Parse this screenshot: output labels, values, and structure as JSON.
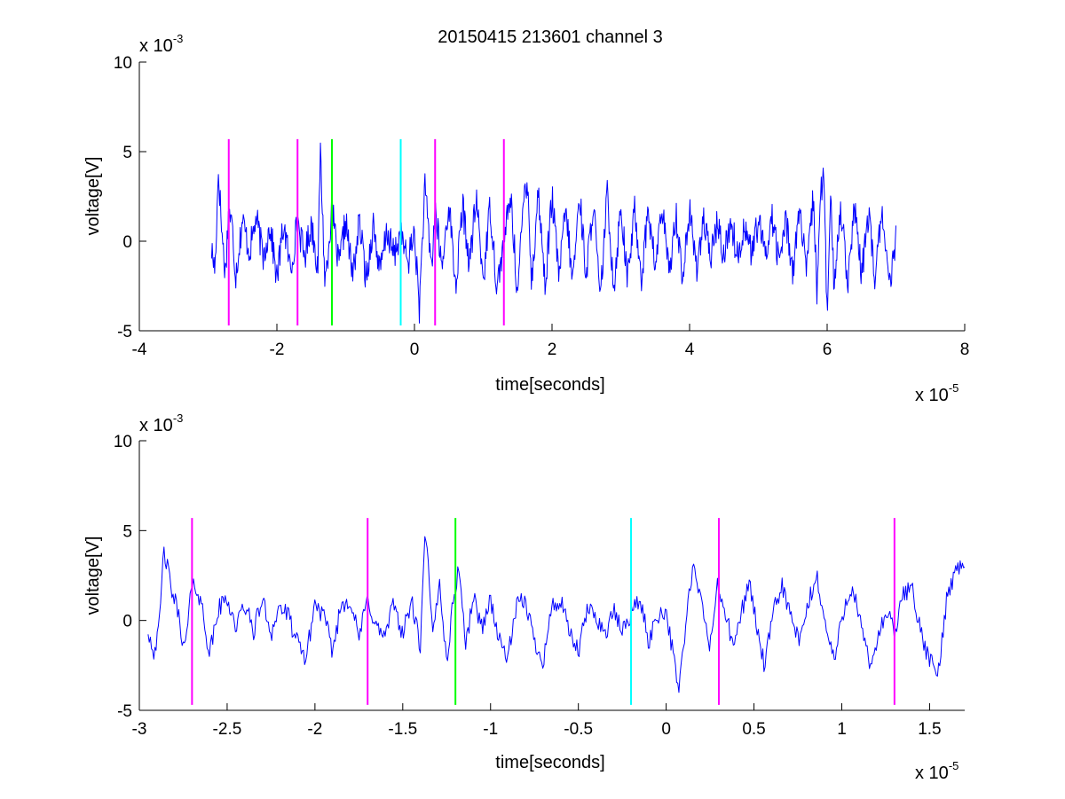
{
  "figure": {
    "title": "20150415 213601 channel 3"
  },
  "chart_data": [
    {
      "type": "line",
      "title": "20150415 213601 channel 3",
      "xlabel": "time[seconds]",
      "ylabel": "voltage[V]",
      "x_multiplier": {
        "base": "x 10",
        "exponent": "-5"
      },
      "y_multiplier": {
        "base": "x 10",
        "exponent": "-3"
      },
      "xlim": [
        -4,
        8
      ],
      "ylim": [
        -5,
        10
      ],
      "x_ticks": [
        -4,
        -2,
        0,
        2,
        4,
        6,
        8
      ],
      "x_tick_labels": [
        "-4",
        "-2",
        "0",
        "2",
        "4",
        "6",
        "8"
      ],
      "y_ticks": [
        -5,
        0,
        5,
        10
      ],
      "y_tick_labels": [
        "-5",
        "0",
        "5",
        "10"
      ],
      "grid": false,
      "signal": {
        "color": "#0000ff",
        "x_range": [
          -2.95,
          7.0
        ],
        "points": [
          [
            -2.95,
            -0.5
          ],
          [
            -2.9,
            -1.6
          ],
          [
            -2.85,
            4.0
          ],
          [
            -2.8,
            0.5
          ],
          [
            -2.75,
            -1.8
          ],
          [
            -2.7,
            1.8
          ],
          [
            -2.65,
            0.8
          ],
          [
            -2.6,
            -1.9
          ],
          [
            -2.5,
            1.2
          ],
          [
            -2.4,
            -0.6
          ],
          [
            -2.3,
            1.3
          ],
          [
            -2.2,
            -0.9
          ],
          [
            -2.1,
            0.9
          ],
          [
            -2.0,
            -2.1
          ],
          [
            -1.9,
            1.0
          ],
          [
            -1.8,
            -1.7
          ],
          [
            -1.7,
            1.2
          ],
          [
            -1.6,
            -0.9
          ],
          [
            -1.5,
            1.0
          ],
          [
            -1.4,
            -1.5
          ],
          [
            -1.37,
            5.2
          ],
          [
            -1.3,
            -2.4
          ],
          [
            -1.2,
            1.9
          ],
          [
            -1.1,
            -1.5
          ],
          [
            -1.0,
            1.2
          ],
          [
            -0.9,
            -2.0
          ],
          [
            -0.8,
            1.1
          ],
          [
            -0.7,
            -2.2
          ],
          [
            -0.6,
            1.0
          ],
          [
            -0.5,
            -1.8
          ],
          [
            -0.4,
            0.6
          ],
          [
            -0.3,
            -0.8
          ],
          [
            -0.2,
            0.4
          ],
          [
            -0.1,
            -1.2
          ],
          [
            0.0,
            0.5
          ],
          [
            0.07,
            -3.8
          ],
          [
            0.15,
            3.0
          ],
          [
            0.25,
            -1.5
          ],
          [
            0.3,
            1.9
          ],
          [
            0.4,
            -1.6
          ],
          [
            0.5,
            2.2
          ],
          [
            0.6,
            -2.6
          ],
          [
            0.7,
            2.0
          ],
          [
            0.8,
            -1.3
          ],
          [
            0.9,
            2.4
          ],
          [
            1.0,
            -2.2
          ],
          [
            1.1,
            2.0
          ],
          [
            1.2,
            -2.6
          ],
          [
            1.3,
            0.0
          ],
          [
            1.4,
            2.5
          ],
          [
            1.5,
            -3.0
          ],
          [
            1.6,
            3.0
          ],
          [
            1.65,
            3.4
          ],
          [
            1.7,
            -2.5
          ],
          [
            1.8,
            2.8
          ],
          [
            1.9,
            -2.5
          ],
          [
            2.0,
            2.5
          ],
          [
            2.1,
            -2.0
          ],
          [
            2.2,
            1.8
          ],
          [
            2.3,
            -2.3
          ],
          [
            2.4,
            2.6
          ],
          [
            2.5,
            -2.0
          ],
          [
            2.6,
            2.3
          ],
          [
            2.7,
            -3.5
          ],
          [
            2.8,
            2.7
          ],
          [
            2.9,
            -2.6
          ],
          [
            3.0,
            2.0
          ],
          [
            3.1,
            -2.2
          ],
          [
            3.2,
            1.8
          ],
          [
            3.3,
            -2.0
          ],
          [
            3.4,
            1.8
          ],
          [
            3.5,
            -1.5
          ],
          [
            3.6,
            2.0
          ],
          [
            3.7,
            -1.9
          ],
          [
            3.8,
            1.6
          ],
          [
            3.9,
            -2.0
          ],
          [
            4.0,
            1.7
          ],
          [
            4.1,
            -1.5
          ],
          [
            4.2,
            1.2
          ],
          [
            4.3,
            -1.0
          ],
          [
            4.4,
            1.0
          ],
          [
            4.5,
            -0.8
          ],
          [
            4.6,
            1.2
          ],
          [
            4.7,
            -1.0
          ],
          [
            4.8,
            1.0
          ],
          [
            4.9,
            -0.7
          ],
          [
            5.0,
            1.1
          ],
          [
            5.1,
            -0.8
          ],
          [
            5.2,
            1.4
          ],
          [
            5.3,
            -1.2
          ],
          [
            5.4,
            1.2
          ],
          [
            5.5,
            -1.6
          ],
          [
            5.6,
            1.8
          ],
          [
            5.7,
            -1.9
          ],
          [
            5.8,
            2.5
          ],
          [
            5.85,
            -2.8
          ],
          [
            5.9,
            2.6
          ],
          [
            5.95,
            3.6
          ],
          [
            6.0,
            -4.2
          ],
          [
            6.05,
            2.2
          ],
          [
            6.1,
            -2.4
          ],
          [
            6.2,
            2.0
          ],
          [
            6.3,
            -2.2
          ],
          [
            6.4,
            1.8
          ],
          [
            6.5,
            -2.0
          ],
          [
            6.6,
            1.6
          ],
          [
            6.7,
            -2.2
          ],
          [
            6.8,
            2.0
          ],
          [
            6.9,
            -2.8
          ],
          [
            7.0,
            0.0
          ]
        ]
      },
      "markers": [
        {
          "x": -2.7,
          "color": "#ff00ff",
          "y_range": [
            -4.7,
            5.7
          ]
        },
        {
          "x": -1.7,
          "color": "#ff00ff",
          "y_range": [
            -4.7,
            5.7
          ]
        },
        {
          "x": -1.2,
          "color": "#00ff00",
          "y_range": [
            -4.7,
            5.7
          ]
        },
        {
          "x": -0.2,
          "color": "#00ffff",
          "y_range": [
            -4.7,
            5.7
          ]
        },
        {
          "x": 0.3,
          "color": "#ff00ff",
          "y_range": [
            -4.7,
            5.7
          ]
        },
        {
          "x": 1.3,
          "color": "#ff00ff",
          "y_range": [
            -4.7,
            5.7
          ]
        }
      ]
    },
    {
      "type": "line",
      "title": "",
      "xlabel": "time[seconds]",
      "ylabel": "voltage[V]",
      "x_multiplier": {
        "base": "x 10",
        "exponent": "-5"
      },
      "y_multiplier": {
        "base": "x 10",
        "exponent": "-3"
      },
      "xlim": [
        -3.0,
        1.7
      ],
      "ylim": [
        -5,
        10
      ],
      "x_ticks": [
        -3,
        -2.5,
        -2,
        -1.5,
        -1,
        -0.5,
        0,
        0.5,
        1,
        1.5
      ],
      "x_tick_labels": [
        "-3",
        "-2.5",
        "-2",
        "-1.5",
        "-1",
        "-0.5",
        "0",
        "0.5",
        "1",
        "1.5"
      ],
      "y_ticks": [
        -5,
        0,
        5,
        10
      ],
      "y_tick_labels": [
        "-5",
        "0",
        "5",
        "10"
      ],
      "grid": false,
      "signal": {
        "color": "#0000ff",
        "x_range": [
          -2.95,
          1.7
        ],
        "points": [
          [
            -2.95,
            -0.5
          ],
          [
            -2.92,
            -1.7
          ],
          [
            -2.89,
            -0.8
          ],
          [
            -2.86,
            4.0
          ],
          [
            -2.82,
            1.8
          ],
          [
            -2.78,
            0.5
          ],
          [
            -2.74,
            -1.8
          ],
          [
            -2.71,
            1.4
          ],
          [
            -2.68,
            2.0
          ],
          [
            -2.64,
            0.6
          ],
          [
            -2.6,
            -1.9
          ],
          [
            -2.55,
            0.6
          ],
          [
            -2.5,
            1.3
          ],
          [
            -2.45,
            -0.4
          ],
          [
            -2.4,
            0.9
          ],
          [
            -2.35,
            -0.6
          ],
          [
            -2.3,
            1.2
          ],
          [
            -2.25,
            -0.7
          ],
          [
            -2.2,
            0.8
          ],
          [
            -2.15,
            0.2
          ],
          [
            -2.1,
            -1.3
          ],
          [
            -2.05,
            -2.1
          ],
          [
            -2.0,
            1.0
          ],
          [
            -1.95,
            0.2
          ],
          [
            -1.9,
            -1.7
          ],
          [
            -1.85,
            0.9
          ],
          [
            -1.8,
            1.2
          ],
          [
            -1.75,
            -1.0
          ],
          [
            -1.7,
            1.2
          ],
          [
            -1.65,
            -0.4
          ],
          [
            -1.6,
            -0.9
          ],
          [
            -1.55,
            1.0
          ],
          [
            -1.5,
            -0.8
          ],
          [
            -1.45,
            1.1
          ],
          [
            -1.4,
            -1.5
          ],
          [
            -1.37,
            5.2
          ],
          [
            -1.33,
            -1.0
          ],
          [
            -1.29,
            2.2
          ],
          [
            -1.25,
            -2.4
          ],
          [
            -1.21,
            1.3
          ],
          [
            -1.18,
            3.0
          ],
          [
            -1.14,
            -1.5
          ],
          [
            -1.1,
            1.4
          ],
          [
            -1.05,
            -0.4
          ],
          [
            -1.0,
            1.2
          ],
          [
            -0.95,
            -1.2
          ],
          [
            -0.9,
            -2.0
          ],
          [
            -0.85,
            0.8
          ],
          [
            -0.8,
            1.1
          ],
          [
            -0.75,
            -1.2
          ],
          [
            -0.7,
            -2.2
          ],
          [
            -0.65,
            0.8
          ],
          [
            -0.6,
            1.0
          ],
          [
            -0.55,
            -0.7
          ],
          [
            -0.5,
            -1.8
          ],
          [
            -0.45,
            0.6
          ],
          [
            -0.4,
            0.3
          ],
          [
            -0.35,
            -0.8
          ],
          [
            -0.3,
            0.5
          ],
          [
            -0.25,
            -0.6
          ],
          [
            -0.2,
            0.4
          ],
          [
            -0.15,
            1.2
          ],
          [
            -0.1,
            -1.2
          ],
          [
            -0.05,
            0.3
          ],
          [
            0.0,
            0.6
          ],
          [
            0.04,
            -2.0
          ],
          [
            0.07,
            -3.8
          ],
          [
            0.11,
            -0.5
          ],
          [
            0.15,
            3.0
          ],
          [
            0.2,
            1.0
          ],
          [
            0.25,
            -1.5
          ],
          [
            0.29,
            1.9
          ],
          [
            0.34,
            0.4
          ],
          [
            0.38,
            -1.6
          ],
          [
            0.43,
            0.5
          ],
          [
            0.47,
            2.2
          ],
          [
            0.52,
            -0.5
          ],
          [
            0.56,
            -2.6
          ],
          [
            0.61,
            0.4
          ],
          [
            0.66,
            2.0
          ],
          [
            0.71,
            0.2
          ],
          [
            0.76,
            -1.3
          ],
          [
            0.81,
            1.0
          ],
          [
            0.86,
            2.4
          ],
          [
            0.91,
            -0.5
          ],
          [
            0.96,
            -2.2
          ],
          [
            1.01,
            0.6
          ],
          [
            1.06,
            2.0
          ],
          [
            1.11,
            -0.4
          ],
          [
            1.16,
            -2.6
          ],
          [
            1.21,
            -0.8
          ],
          [
            1.26,
            0.5
          ],
          [
            1.3,
            -0.8
          ],
          [
            1.35,
            1.4
          ],
          [
            1.4,
            2.0
          ],
          [
            1.45,
            -0.8
          ],
          [
            1.5,
            -2.2
          ],
          [
            1.55,
            -3.0
          ],
          [
            1.6,
            1.5
          ],
          [
            1.65,
            2.8
          ],
          [
            1.7,
            3.4
          ]
        ]
      },
      "markers": [
        {
          "x": -2.7,
          "color": "#ff00ff",
          "y_range": [
            -4.7,
            5.7
          ]
        },
        {
          "x": -1.7,
          "color": "#ff00ff",
          "y_range": [
            -4.7,
            5.7
          ]
        },
        {
          "x": -1.2,
          "color": "#00ff00",
          "y_range": [
            -4.7,
            5.7
          ]
        },
        {
          "x": -0.2,
          "color": "#00ffff",
          "y_range": [
            -4.7,
            5.7
          ]
        },
        {
          "x": 0.3,
          "color": "#ff00ff",
          "y_range": [
            -4.7,
            5.7
          ]
        },
        {
          "x": 1.3,
          "color": "#ff00ff",
          "y_range": [
            -4.7,
            5.7
          ]
        }
      ]
    }
  ]
}
